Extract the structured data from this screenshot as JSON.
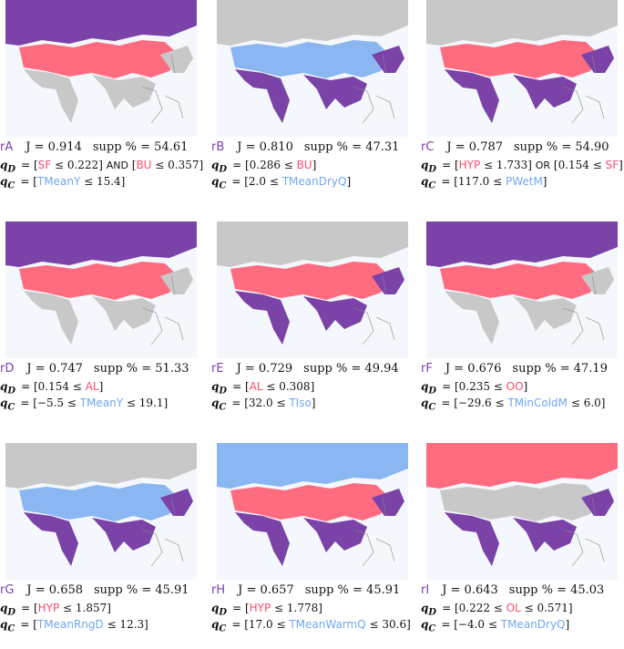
{
  "colors": {
    "gray": "#c8c8c8",
    "purple": "#7b42a8",
    "red": "#ff6b7f",
    "blue": "#8ab6f2",
    "water": "#f4f8fd"
  },
  "panels": [
    {
      "id": "rA",
      "J": "J = 0.914",
      "supp": "supp % = 54.61",
      "qd": [
        {
          "t": "[",
          "c": ""
        },
        {
          "t": "SF",
          "c": "red"
        },
        {
          "t": " ≤ 0.222] ",
          "c": ""
        },
        {
          "t": "AND",
          "c": "op"
        },
        {
          "t": " [",
          "c": ""
        },
        {
          "t": "BU",
          "c": "red"
        },
        {
          "t": " ≤ 0.357]",
          "c": ""
        }
      ],
      "qc": [
        {
          "t": "[",
          "c": ""
        },
        {
          "t": "TMeanY",
          "c": "blue"
        },
        {
          "t": " ≤ 15.4]",
          "c": ""
        }
      ],
      "fill": {
        "top": "purple",
        "south": "gray",
        "mid": "red"
      }
    },
    {
      "id": "rB",
      "J": "J = 0.810",
      "supp": "supp % = 47.31",
      "qd": [
        {
          "t": "[0.286 ≤ ",
          "c": ""
        },
        {
          "t": "BU",
          "c": "red"
        },
        {
          "t": "]",
          "c": ""
        }
      ],
      "qc": [
        {
          "t": "[2.0 ≤ ",
          "c": ""
        },
        {
          "t": "TMeanDryQ",
          "c": "blue"
        },
        {
          "t": "]",
          "c": ""
        }
      ],
      "fill": {
        "top": "gray",
        "south": "purple",
        "mid": "blue"
      }
    },
    {
      "id": "rC",
      "J": "J = 0.787",
      "supp": "supp % = 54.90",
      "qd": [
        {
          "t": "[",
          "c": ""
        },
        {
          "t": "HYP",
          "c": "red"
        },
        {
          "t": " ≤ 1.733] ",
          "c": ""
        },
        {
          "t": "OR",
          "c": "op"
        },
        {
          "t": " [0.154 ≤ ",
          "c": ""
        },
        {
          "t": "SF",
          "c": "red"
        },
        {
          "t": "]",
          "c": ""
        }
      ],
      "qc": [
        {
          "t": "[117.0 ≤ ",
          "c": ""
        },
        {
          "t": "PWetM",
          "c": "blue"
        },
        {
          "t": "]",
          "c": ""
        }
      ],
      "fill": {
        "top": "gray",
        "south": "purple",
        "mid": "red"
      }
    },
    {
      "id": "rD",
      "J": "J = 0.747",
      "supp": "supp % = 51.33",
      "qd": [
        {
          "t": "[0.154 ≤ ",
          "c": ""
        },
        {
          "t": "AL",
          "c": "red"
        },
        {
          "t": "]",
          "c": ""
        }
      ],
      "qc": [
        {
          "t": "[−5.5 ≤ ",
          "c": ""
        },
        {
          "t": "TMeanY",
          "c": "blue"
        },
        {
          "t": " ≤ 19.1]",
          "c": ""
        }
      ],
      "fill": {
        "top": "purple",
        "south": "gray",
        "mid": "red"
      }
    },
    {
      "id": "rE",
      "J": "J = 0.729",
      "supp": "supp % = 49.94",
      "qd": [
        {
          "t": "[",
          "c": ""
        },
        {
          "t": "AL",
          "c": "red"
        },
        {
          "t": " ≤ 0.308]",
          "c": ""
        }
      ],
      "qc": [
        {
          "t": "[32.0 ≤ ",
          "c": ""
        },
        {
          "t": "TIso",
          "c": "blue"
        },
        {
          "t": "]",
          "c": ""
        }
      ],
      "fill": {
        "top": "gray",
        "south": "purple",
        "mid": "red"
      }
    },
    {
      "id": "rF",
      "J": "J = 0.676",
      "supp": "supp % = 47.19",
      "qd": [
        {
          "t": "[0.235 ≤ ",
          "c": ""
        },
        {
          "t": "OO",
          "c": "red"
        },
        {
          "t": "]",
          "c": ""
        }
      ],
      "qc": [
        {
          "t": "[−29.6 ≤ ",
          "c": ""
        },
        {
          "t": "TMinColdM",
          "c": "blue"
        },
        {
          "t": " ≤ 6.0]",
          "c": ""
        }
      ],
      "fill": {
        "top": "purple",
        "south": "gray",
        "mid": "red"
      }
    },
    {
      "id": "rG",
      "J": "J = 0.658",
      "supp": "supp % = 45.91",
      "qd": [
        {
          "t": "[",
          "c": ""
        },
        {
          "t": "HYP",
          "c": "red"
        },
        {
          "t": " ≤ 1.857]",
          "c": ""
        }
      ],
      "qc": [
        {
          "t": "[",
          "c": ""
        },
        {
          "t": "TMeanRngD",
          "c": "blue"
        },
        {
          "t": " ≤ 12.3]",
          "c": ""
        }
      ],
      "fill": {
        "top": "gray",
        "south": "purple",
        "mid": "blue"
      }
    },
    {
      "id": "rH",
      "J": "J = 0.657",
      "supp": "supp % = 45.91",
      "qd": [
        {
          "t": "[",
          "c": ""
        },
        {
          "t": "HYP",
          "c": "red"
        },
        {
          "t": " ≤ 1.778]",
          "c": ""
        }
      ],
      "qc": [
        {
          "t": "[17.0 ≤ ",
          "c": ""
        },
        {
          "t": "TMeanWarmQ",
          "c": "blue"
        },
        {
          "t": " ≤ 30.6]",
          "c": ""
        }
      ],
      "fill": {
        "top": "blue",
        "south": "purple",
        "mid": "red"
      }
    },
    {
      "id": "rI",
      "J": "J = 0.643",
      "supp": "supp % = 45.03",
      "qd": [
        {
          "t": "[0.222 ≤ ",
          "c": ""
        },
        {
          "t": "OL",
          "c": "red"
        },
        {
          "t": " ≤ 0.571]",
          "c": ""
        }
      ],
      "qc": [
        {
          "t": "[−4.0 ≤ ",
          "c": ""
        },
        {
          "t": "TMeanDryQ",
          "c": "blue"
        },
        {
          "t": "]",
          "c": ""
        }
      ],
      "fill": {
        "top": "red",
        "south": "purple",
        "mid": "gray"
      }
    }
  ]
}
